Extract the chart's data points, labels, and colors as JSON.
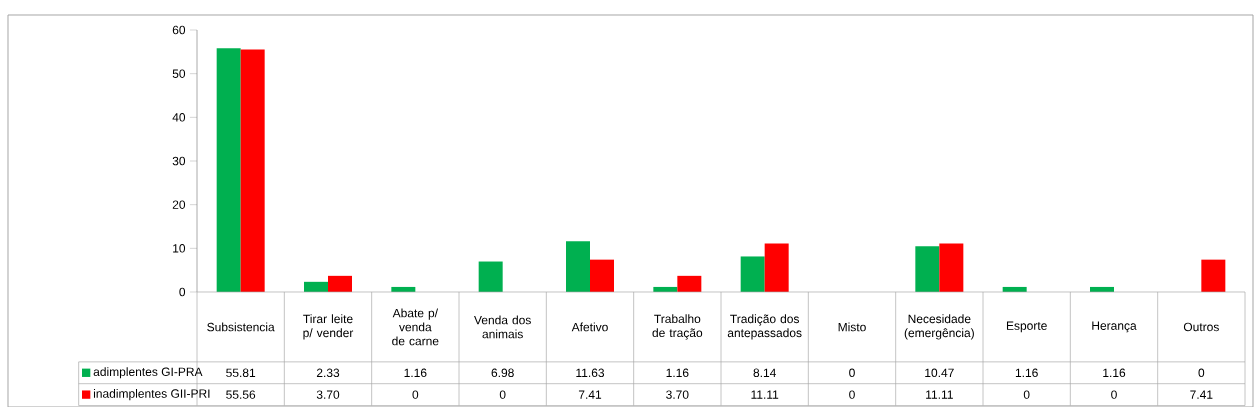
{
  "chart_data": {
    "type": "bar",
    "categories": [
      "Subsistencia",
      "Tirar leite p/ vender",
      "Abate p/ venda de carne",
      "Venda dos animais",
      "Afetivo",
      "Trabalho de tração",
      "Tradição dos antepassados",
      "Misto",
      "Necesidade (emergência)",
      "Esporte",
      "Herança",
      "Outros"
    ],
    "series": [
      {
        "name": "adimplentes GI-PRA",
        "color": "#00b050",
        "values": [
          55.81,
          2.33,
          1.16,
          6.98,
          11.63,
          1.16,
          8.14,
          0,
          10.47,
          1.16,
          1.16,
          0
        ],
        "value_labels": [
          "55.81",
          "2.33",
          "1.16",
          "6.98",
          "11.63",
          "1.16",
          "8.14",
          "0",
          "10.47",
          "1.16",
          "1.16",
          "0"
        ]
      },
      {
        "name": "inadimplentes GII-PRI",
        "color": "#ff0000",
        "values": [
          55.56,
          3.7,
          0,
          0,
          7.41,
          3.7,
          11.11,
          0,
          11.11,
          0,
          0,
          7.41
        ],
        "value_labels": [
          "55.56",
          "3.70",
          "0",
          "0",
          "7.41",
          "3.70",
          "11.11",
          "0",
          "11.11",
          "0",
          "0",
          "7.41"
        ]
      }
    ],
    "ylim": [
      0,
      60
    ],
    "yticks": [
      0,
      10,
      20,
      30,
      40,
      50,
      60
    ],
    "legend": "bottom left"
  }
}
